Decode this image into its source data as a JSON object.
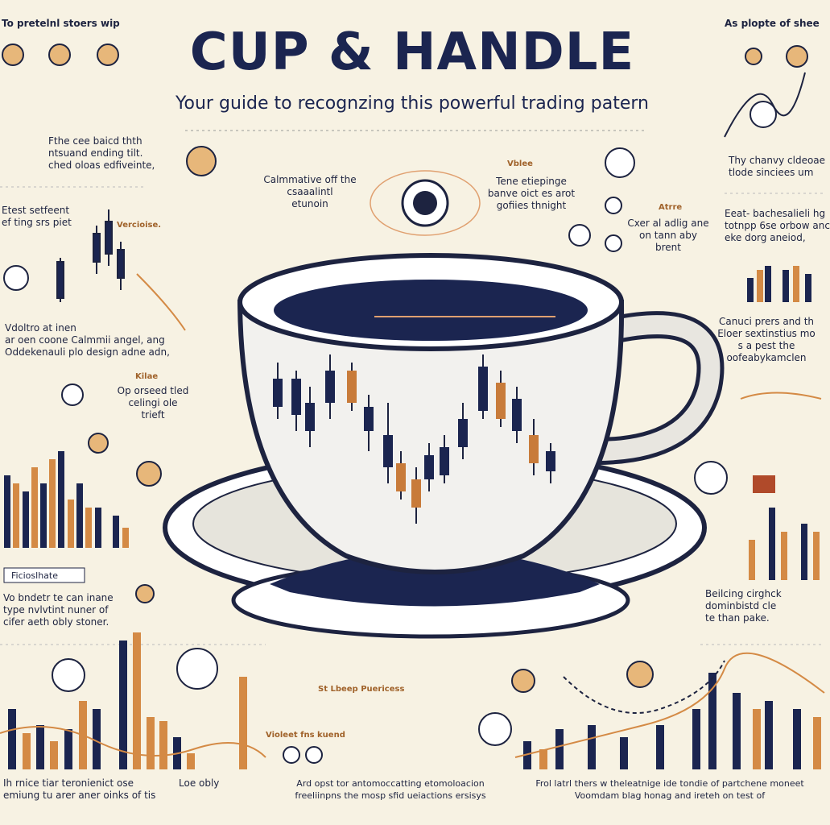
{
  "header": {
    "title": "CUP & HANDLE",
    "subtitle": "Your guide to recognzing this powerful trading patern"
  },
  "left_panel": [
    {
      "lines": [
        "To pretelnl stoers wip"
      ]
    },
    {
      "lines": [
        "Fthe cee baicd thth",
        "ntsuand ending tilt.",
        "ched oloas edfiveinte,"
      ]
    },
    {
      "lines": [
        "Etest setfeent",
        "ef ting srs piet"
      ]
    },
    {
      "lines": [
        "Vercioise."
      ]
    },
    {
      "lines": [
        "Vdoltro at inen",
        "ar oen coone Calmmii angel, ang",
        "Oddekenauli plo design adne adn,"
      ]
    },
    {
      "lines": [
        "Kilae"
      ]
    },
    {
      "lines": [
        "Op orseed tled",
        "celingi ole",
        "trieft"
      ]
    },
    {
      "lines": [
        "Ficioslhate"
      ]
    },
    {
      "lines": [
        "Vo bndetr te can inane",
        "type nvlvtint nuner of",
        "cifer aeth obly stoner."
      ]
    }
  ],
  "center_notes": [
    {
      "lines": [
        "Calmmative off the",
        "csaaalintl",
        "etunoin"
      ]
    },
    {
      "lines": [
        "Vblee"
      ]
    },
    {
      "lines": [
        "Tene etiepinge",
        "banve oict es arot",
        "gofiies thnight"
      ]
    },
    {
      "lines": [
        "Atrre"
      ]
    },
    {
      "lines": [
        "Cxer al adlig ane",
        "on tann aby",
        "brent"
      ]
    }
  ],
  "right_panel": [
    {
      "lines": [
        "As plopte of shee"
      ]
    },
    {
      "lines": [
        "Thy chanvy cldeoae",
        "tlode sinciees um"
      ]
    },
    {
      "lines": [
        "Eeat- bachesalieli hg",
        "totnpp 6se orbow anc",
        "eke dorg aneiod,"
      ]
    },
    {
      "lines": [
        "Canuci prers and th",
        "Eloer sextinstius mo",
        "s a pest the",
        "oofeabykamclen"
      ]
    },
    {
      "lines": [
        "Beilcing cirghck",
        "dominbistd cle",
        "te than pake."
      ]
    }
  ],
  "footer": [
    {
      "lines": [
        "Ih rnice tiar teronienict ose",
        "emiung tu arer aner oinks of tis"
      ]
    },
    {
      "lines": [
        "Loe obly"
      ]
    },
    {
      "lines": [
        "St Lbeep Puericess"
      ]
    },
    {
      "lines": [
        "Violeet fns kuend"
      ]
    },
    {
      "lines": [
        "Ard opst tor antomoccatting etomoloacion",
        "freeliinpns the mosp sfid ueiactions ersisys"
      ]
    },
    {
      "lines": [
        "Frol latrl thers w theleatnige ide tondie of partchene moneet",
        "Voomdam blag honag and ireteh on test of"
      ]
    }
  ]
}
